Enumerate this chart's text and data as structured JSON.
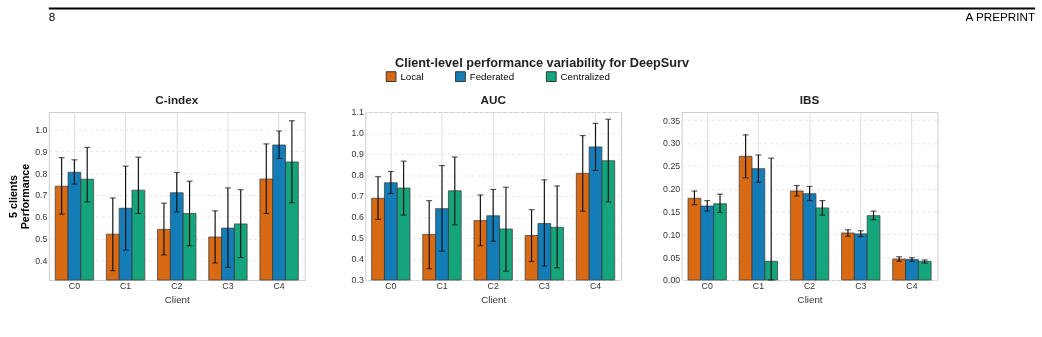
{
  "chart_data": [
    {
      "type": "bar",
      "title": "C-index",
      "xlabel": "Client",
      "ylabel": "5 clients\nPerformance",
      "legend": "top",
      "annotations": [
        "8",
        "A PREPRINT",
        "Client-level performance variability for DeepSurv"
      ],
      "categories": [
        "C0",
        "C1",
        "C2",
        "C3",
        "C4"
      ],
      "ylim": [
        0.31,
        1.08
      ],
      "yticks": [
        0.4,
        0.5,
        0.6,
        0.7,
        0.8,
        0.9,
        {
          "value": 1,
          "label": "1.0"
        }
      ],
      "grid": true,
      "series": [
        {
          "name": "Local",
          "color": "#d55e00",
          "values": [
            0.74,
            0.52,
            0.542,
            0.507,
            0.773
          ],
          "errors": [
            [
              0.612,
              0.871
            ],
            [
              0.353,
              0.686
            ],
            [
              0.425,
              0.662
            ],
            [
              0.388,
              0.627
            ],
            [
              0.615,
              0.934
            ]
          ]
        },
        {
          "name": "Federated",
          "color": "#0173b2",
          "values": [
            0.804,
            0.639,
            0.71,
            0.548,
            0.929
          ],
          "errors": [
            [
              0.75,
              0.861
            ],
            [
              0.447,
              0.832
            ],
            [
              0.622,
              0.803
            ],
            [
              0.368,
              0.732
            ],
            [
              0.867,
              0.993
            ]
          ]
        },
        {
          "name": "Centralized",
          "color": "#029e73",
          "values": [
            0.772,
            0.722,
            0.615,
            0.567,
            0.851
          ],
          "errors": [
            [
              0.668,
              0.918
            ],
            [
              0.615,
              0.873
            ],
            [
              0.467,
              0.763
            ],
            [
              0.413,
              0.724
            ],
            [
              0.664,
              1.04
            ]
          ]
        }
      ]
    },
    {
      "type": "bar",
      "title": "AUC",
      "xlabel": "Client",
      "categories": [
        "C0",
        "C1",
        "C2",
        "C3",
        "C4"
      ],
      "ylim": [
        0.3,
        1.1
      ],
      "yticks": [
        0.3,
        0.4,
        0.5,
        0.6,
        0.7,
        0.8,
        0.9,
        {
          "value": 1,
          "label": "1.0"
        },
        1.1
      ],
      "grid": true,
      "series": [
        {
          "color": "#d55e00",
          "values": [
            0.689,
            0.517,
            0.583,
            0.512,
            0.808
          ],
          "errors": [
            [
              0.589,
              0.792
            ],
            [
              0.354,
              0.678
            ],
            [
              0.463,
              0.705
            ],
            [
              0.388,
              0.635
            ],
            [
              0.628,
              0.988
            ]
          ]
        },
        {
          "color": "#0173b2",
          "values": [
            0.763,
            0.64,
            0.606,
            0.569,
            0.934
          ],
          "errors": [
            [
              0.712,
              0.817
            ],
            [
              0.437,
              0.845
            ],
            [
              0.485,
              0.731
            ],
            [
              0.366,
              0.777
            ],
            [
              0.822,
              1.046
            ]
          ]
        },
        {
          "color": "#029e73",
          "values": [
            0.738,
            0.725,
            0.543,
            0.551,
            0.868
          ],
          "errors": [
            [
              0.609,
              0.866
            ],
            [
              0.563,
              0.886
            ],
            [
              0.342,
              0.742
            ],
            [
              0.358,
              0.748
            ],
            [
              0.672,
              1.066
            ]
          ]
        }
      ]
    },
    {
      "type": "bar",
      "title": "IBS",
      "xlabel": "Client",
      "categories": [
        "C0",
        "C1",
        "C2",
        "C3",
        "C4"
      ],
      "ylim": [
        0.0,
        0.368
      ],
      "yticks": [
        {
          "value": 0,
          "label": "0.00"
        },
        0.05,
        {
          "value": 0.1,
          "label": "0.10"
        },
        0.15,
        {
          "value": 0.2,
          "label": "0.20"
        },
        0.25,
        {
          "value": 0.3,
          "label": "0.30"
        },
        0.35
      ],
      "grid": true,
      "series": [
        {
          "color": "#d55e00",
          "values": [
            0.179,
            0.271,
            0.195,
            0.103,
            0.046
          ],
          "errors": [
            [
              0.165,
              0.195
            ],
            [
              0.224,
              0.318
            ],
            [
              0.184,
              0.207
            ],
            [
              0.096,
              0.11
            ],
            [
              0.041,
              0.051
            ]
          ]
        },
        {
          "color": "#0173b2",
          "values": [
            0.162,
            0.244,
            0.189,
            0.101,
            0.045
          ],
          "errors": [
            [
              0.151,
              0.174
            ],
            [
              0.214,
              0.274
            ],
            [
              0.174,
              0.205
            ],
            [
              0.095,
              0.108
            ],
            [
              0.041,
              0.049
            ]
          ]
        },
        {
          "color": "#029e73",
          "values": [
            0.167,
            0.041,
            0.158,
            0.141,
            0.041
          ],
          "errors": [
            [
              0.148,
              0.188
            ],
            [
              0.0,
              0.267
            ],
            [
              0.142,
              0.174
            ],
            [
              0.132,
              0.151
            ],
            [
              0.037,
              0.044
            ]
          ]
        }
      ]
    }
  ]
}
